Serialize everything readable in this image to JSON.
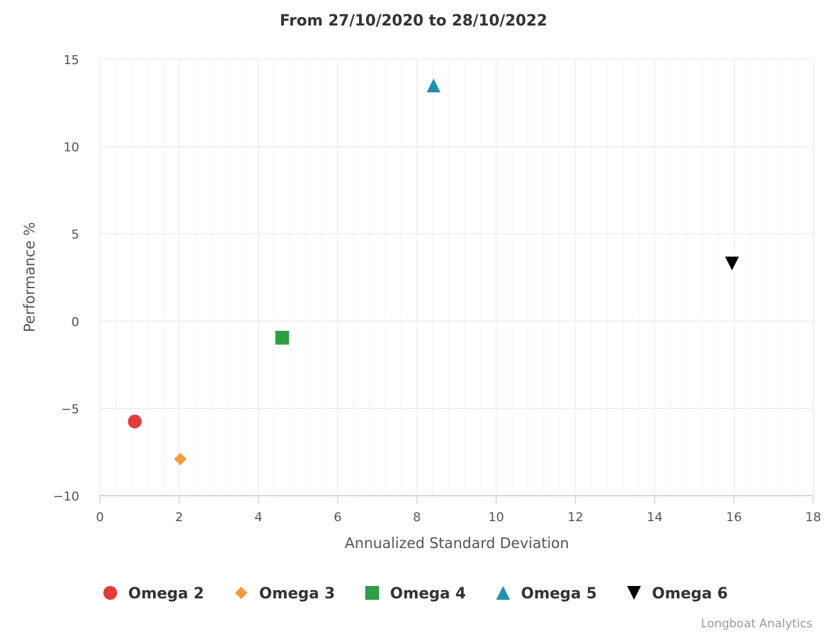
{
  "chart_data": {
    "type": "scatter",
    "title": "From 27/10/2020 to 28/10/2022",
    "xlabel": "Annualized Standard Deviation",
    "ylabel": "Performance %",
    "xlim": [
      0,
      18
    ],
    "ylim": [
      -10,
      15
    ],
    "x_ticks": [
      0,
      2,
      4,
      6,
      8,
      10,
      12,
      14,
      16,
      18
    ],
    "y_ticks": [
      -10,
      -5,
      0,
      5,
      10,
      15
    ],
    "x_tick_labels": [
      "0",
      "2",
      "4",
      "6",
      "8",
      "10",
      "12",
      "14",
      "16",
      "18"
    ],
    "y_tick_labels": [
      "−10",
      "−5",
      "0",
      "5",
      "10",
      "15"
    ],
    "grid": true,
    "legend_position": "bottom",
    "series": [
      {
        "name": "Omega 2",
        "x": [
          0.88
        ],
        "y": [
          -5.75
        ],
        "marker": "circle",
        "color": "#e03c3c"
      },
      {
        "name": "Omega 3",
        "x": [
          2.03
        ],
        "y": [
          -7.9
        ],
        "marker": "diamond",
        "color": "#f7993e"
      },
      {
        "name": "Omega 4",
        "x": [
          4.6
        ],
        "y": [
          -0.95
        ],
        "marker": "square",
        "color": "#2e9e44"
      },
      {
        "name": "Omega 5",
        "x": [
          8.42
        ],
        "y": [
          13.5
        ],
        "marker": "triangle",
        "color": "#2390b0"
      },
      {
        "name": "Omega 6",
        "x": [
          15.95
        ],
        "y": [
          3.3
        ],
        "marker": "triangle-down",
        "color": "#000000"
      }
    ]
  },
  "credits": "Longboat Analytics"
}
